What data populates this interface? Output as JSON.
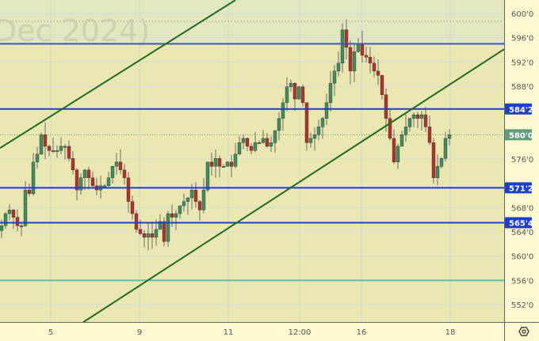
{
  "watermark": "Dec 2024)",
  "chart_data": {
    "type": "candlestick",
    "ylim": [
      550,
      602.6
    ],
    "y_ticks": [
      "600'0",
      "596'0",
      "592'0",
      "588'0",
      "576'0",
      "568'0",
      "564'0",
      "560'0",
      "556'0",
      "552'0"
    ],
    "y_tick_values": [
      600,
      596,
      592,
      588,
      576,
      568,
      564,
      560,
      556,
      552
    ],
    "x_ticks": [
      {
        "label": "5",
        "bar": 12.4
      },
      {
        "label": "9",
        "bar": 34.8
      },
      {
        "label": "11",
        "bar": 57.2
      },
      {
        "label": "12:00",
        "bar": 75.2
      },
      {
        "label": "16",
        "bar": 90.8
      },
      {
        "label": "18",
        "bar": 113.2
      }
    ],
    "closes": [
      565.0,
      567.0,
      567.6,
      566.4,
      565.0,
      565.0,
      570.9,
      570.3,
      575.5,
      576.8,
      580.0,
      578.1,
      577.4,
      577.4,
      577.4,
      578.1,
      578.1,
      576.1,
      574.2,
      570.9,
      572.9,
      574.2,
      572.9,
      571.6,
      570.9,
      571.6,
      571.6,
      572.9,
      574.8,
      575.5,
      574.2,
      572.9,
      569.0,
      567.0,
      564.4,
      563.7,
      563.1,
      563.7,
      563.1,
      564.4,
      565.7,
      562.4,
      567.0,
      566.4,
      567.0,
      568.3,
      569.0,
      569.6,
      570.9,
      569.0,
      567.6,
      570.9,
      575.5,
      574.8,
      576.1,
      574.8,
      574.8,
      575.5,
      574.8,
      576.8,
      578.7,
      579.4,
      578.1,
      577.4,
      578.7,
      578.7,
      579.4,
      578.1,
      578.7,
      580.7,
      582.7,
      585.3,
      587.9,
      588.5,
      585.9,
      587.9,
      585.3,
      578.7,
      579.4,
      580.0,
      581.3,
      582.7,
      585.3,
      588.5,
      590.5,
      591.8,
      597.3,
      594.4,
      590.5,
      593.7,
      595.0,
      593.1,
      592.8,
      591.8,
      590.5,
      589.8,
      586.6,
      582.7,
      579.4,
      575.5,
      578.1,
      580.0,
      581.3,
      582.7,
      583.3,
      582.7,
      583.3,
      581.3,
      578.7,
      572.9,
      574.8,
      576.1,
      579.4,
      580.0
    ],
    "last_price": 580.0,
    "high_marker": 598.7,
    "levels": [
      {
        "price": 595.0,
        "color": "#3b4fd8",
        "label": ""
      },
      {
        "price": 584.25,
        "color": "#1c3fcf",
        "label": "584'2"
      },
      {
        "price": 571.25,
        "color": "#1c3fcf",
        "label": "571'2"
      },
      {
        "price": 565.5,
        "color": "#1c3fcf",
        "label": "565'4"
      },
      {
        "price": 556.0,
        "color": "#4fc8a8",
        "label": ""
      }
    ],
    "last_label": "580'0",
    "trendlines": [
      {
        "from": [
          -0.4,
          577.8
        ],
        "to": [
          59,
          602.2
        ],
        "color": "#1f6b1f"
      },
      {
        "from": [
          20.6,
          549.1
        ],
        "to": [
          126.8,
          594.1
        ],
        "color": "#1f6b1f"
      }
    ],
    "colors": {
      "up": "#3f8f5e",
      "down": "#b3322a",
      "plot_bg": "#ebe7b0",
      "upper_zone_bg": "#e2e7c0",
      "badge_last": "#5e9e7c"
    }
  },
  "controls": {
    "settings_icon": "hexagon-gear"
  }
}
